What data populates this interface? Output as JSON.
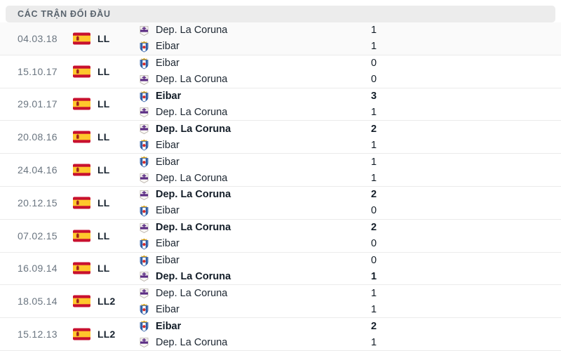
{
  "header": {
    "title": "CÁC TRẬN ĐỐI ĐẦU"
  },
  "colors": {
    "header_bg": "#ececec",
    "header_text": "#5a646e",
    "date_text": "#6a7580",
    "team_text": "#1c2631",
    "row_separator": "#ebebeb",
    "flag_red": "#c8102e",
    "flag_yellow": "#ffc72c",
    "depor_purple": "#5c2d84",
    "eibar_blue": "#2f5fa7",
    "eibar_red": "#d42b2b",
    "crown_gold": "#d9a520"
  },
  "icons": {
    "flag": "spain-flag-icon",
    "depor": "depor-crest-icon",
    "eibar": "eibar-crest-icon"
  },
  "matches": [
    {
      "date": "04.03.18",
      "league": "LL",
      "home": {
        "team": "Dep. La Coruna",
        "logo": "depor-crest-icon",
        "score": "1",
        "winner": false
      },
      "away": {
        "team": "Eibar",
        "logo": "eibar-crest-icon",
        "score": "1",
        "winner": false
      }
    },
    {
      "date": "15.10.17",
      "league": "LL",
      "home": {
        "team": "Eibar",
        "logo": "eibar-crest-icon",
        "score": "0",
        "winner": false
      },
      "away": {
        "team": "Dep. La Coruna",
        "logo": "depor-crest-icon",
        "score": "0",
        "winner": false
      }
    },
    {
      "date": "29.01.17",
      "league": "LL",
      "home": {
        "team": "Eibar",
        "logo": "eibar-crest-icon",
        "score": "3",
        "winner": true
      },
      "away": {
        "team": "Dep. La Coruna",
        "logo": "depor-crest-icon",
        "score": "1",
        "winner": false
      }
    },
    {
      "date": "20.08.16",
      "league": "LL",
      "home": {
        "team": "Dep. La Coruna",
        "logo": "depor-crest-icon",
        "score": "2",
        "winner": true
      },
      "away": {
        "team": "Eibar",
        "logo": "eibar-crest-icon",
        "score": "1",
        "winner": false
      }
    },
    {
      "date": "24.04.16",
      "league": "LL",
      "home": {
        "team": "Eibar",
        "logo": "eibar-crest-icon",
        "score": "1",
        "winner": false
      },
      "away": {
        "team": "Dep. La Coruna",
        "logo": "depor-crest-icon",
        "score": "1",
        "winner": false
      }
    },
    {
      "date": "20.12.15",
      "league": "LL",
      "home": {
        "team": "Dep. La Coruna",
        "logo": "depor-crest-icon",
        "score": "2",
        "winner": true
      },
      "away": {
        "team": "Eibar",
        "logo": "eibar-crest-icon",
        "score": "0",
        "winner": false
      }
    },
    {
      "date": "07.02.15",
      "league": "LL",
      "home": {
        "team": "Dep. La Coruna",
        "logo": "depor-crest-icon",
        "score": "2",
        "winner": true
      },
      "away": {
        "team": "Eibar",
        "logo": "eibar-crest-icon",
        "score": "0",
        "winner": false
      }
    },
    {
      "date": "16.09.14",
      "league": "LL",
      "home": {
        "team": "Eibar",
        "logo": "eibar-crest-icon",
        "score": "0",
        "winner": false
      },
      "away": {
        "team": "Dep. La Coruna",
        "logo": "depor-crest-icon",
        "score": "1",
        "winner": true
      }
    },
    {
      "date": "18.05.14",
      "league": "LL2",
      "home": {
        "team": "Dep. La Coruna",
        "logo": "depor-crest-icon",
        "score": "1",
        "winner": false
      },
      "away": {
        "team": "Eibar",
        "logo": "eibar-crest-icon",
        "score": "1",
        "winner": false
      }
    },
    {
      "date": "15.12.13",
      "league": "LL2",
      "home": {
        "team": "Eibar",
        "logo": "eibar-crest-icon",
        "score": "2",
        "winner": true
      },
      "away": {
        "team": "Dep. La Coruna",
        "logo": "depor-crest-icon",
        "score": "1",
        "winner": false
      }
    }
  ]
}
